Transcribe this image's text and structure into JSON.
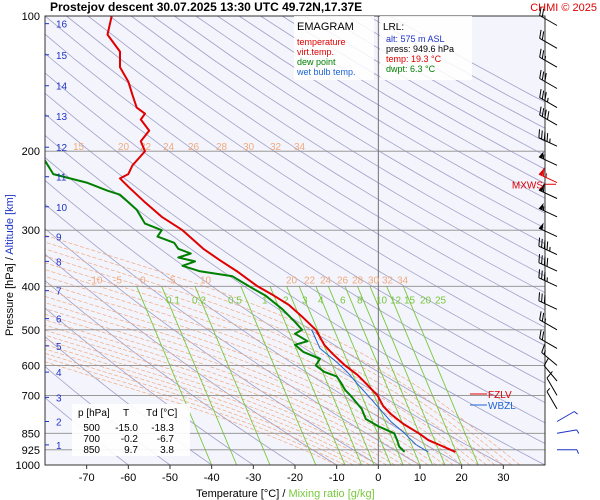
{
  "header": {
    "title": "Prostejov   descent  30.07.2025 13:30 UTC  49.72N,17.37E",
    "copyright": "CHMI © 2025"
  },
  "legend": {
    "title": "EMAGRAM",
    "items": [
      {
        "label": "temperature",
        "color": "#e00000"
      },
      {
        "label": "virt.temp.",
        "color": "#e00000"
      },
      {
        "label": "dew point",
        "color": "#008000"
      },
      {
        "label": "wet bulb temp.",
        "color": "#1e64d2"
      }
    ]
  },
  "lrl": {
    "title": "LRL:",
    "lines": [
      {
        "text": "alt: 575 m ASL",
        "color": "#1e32c8"
      },
      {
        "text": "press: 949.6 hPa",
        "color": "#000000"
      },
      {
        "text": "temp: 19.3 °C",
        "color": "#e00000"
      },
      {
        "text": "dwpt: 6.3 °C",
        "color": "#008000"
      }
    ]
  },
  "table": {
    "headers": [
      "p [hPa]",
      "T",
      "Td [°C]"
    ],
    "rows": [
      [
        "500",
        "-15.0",
        "-18.3"
      ],
      [
        "700",
        "-0.2",
        "-6.7"
      ],
      [
        "850",
        "9.7",
        "3.8"
      ]
    ]
  },
  "axes": {
    "x_label": "Temperature [°C]",
    "x_label_sep": " / ",
    "x_label2": "Mixing ratio [g/kg]",
    "y_label": "Pressure [hPa]",
    "y_label_sep": " / ",
    "y_label2": "Altitude [km]"
  },
  "markers": {
    "mxws": "MXWS",
    "fzlv": "FZLV",
    "wbzl": "WBZL"
  },
  "colors": {
    "temperature": "#e00000",
    "dewpoint": "#008000",
    "wetbulb": "#1e64d2",
    "altitude": "#1e32c8",
    "dry_adiabat": "#a0a0c8",
    "moist_adiabat": "#f0aa7d",
    "mixing_ratio": "#78c83c",
    "background": "#f4f4fd"
  },
  "chart_data": {
    "type": "line",
    "y_scale": "log",
    "xlim": [
      -80,
      40
    ],
    "ylim": [
      1000,
      100
    ],
    "x_ticks": [
      "-70",
      "-60",
      "-50",
      "-40",
      "-30",
      "-20",
      "-10",
      "0",
      "10",
      "20",
      "30"
    ],
    "p_ticks": [
      "100",
      "200",
      "300",
      "400",
      "500",
      "600",
      "700",
      "850",
      "925",
      "1000"
    ],
    "altitude_ticks": [
      {
        "km": "1",
        "p": 902
      },
      {
        "km": "2",
        "p": 800
      },
      {
        "km": "3",
        "p": 707
      },
      {
        "km": "4",
        "p": 621
      },
      {
        "km": "5",
        "p": 543
      },
      {
        "km": "6",
        "p": 472
      },
      {
        "km": "7",
        "p": 409
      },
      {
        "km": "8",
        "p": 352
      },
      {
        "km": "9",
        "p": 310
      },
      {
        "km": "10",
        "p": 266
      },
      {
        "km": "11",
        "p": 228
      },
      {
        "km": "12",
        "p": 196
      },
      {
        "km": "13",
        "p": 167
      },
      {
        "km": "14",
        "p": 143
      },
      {
        "km": "15",
        "p": 122
      },
      {
        "km": "16",
        "p": 104
      }
    ],
    "mixing_ratio_labels": {
      "upper": {
        "p": 200,
        "labels": [
          "15",
          "20",
          "22",
          "24",
          "26",
          "28",
          "30",
          "32",
          "34"
        ]
      },
      "lower": {
        "p": 400,
        "labels": [
          "-10",
          "-5",
          "0",
          "5",
          "10",
          "20",
          "22",
          "24",
          "26",
          "28",
          "30",
          "32",
          "34"
        ]
      },
      "mixing": {
        "p": 430,
        "labels": [
          "0.1",
          "0.2",
          "0.5",
          "1",
          "2",
          "3",
          "4",
          "6",
          "8",
          "10",
          "12",
          "15",
          "20",
          "25"
        ]
      }
    },
    "series": [
      {
        "name": "temperature",
        "color": "#e00000",
        "points": [
          [
            18.5,
            935
          ],
          [
            15,
            905
          ],
          [
            12,
            880
          ],
          [
            9.7,
            850
          ],
          [
            6,
            810
          ],
          [
            3,
            770
          ],
          [
            1.2,
            740
          ],
          [
            -0.2,
            700
          ],
          [
            -2.5,
            665
          ],
          [
            -5,
            630
          ],
          [
            -8,
            600
          ],
          [
            -11,
            565
          ],
          [
            -13,
            540
          ],
          [
            -15,
            500
          ],
          [
            -18,
            470
          ],
          [
            -21.5,
            440
          ],
          [
            -25,
            420
          ],
          [
            -29,
            400
          ],
          [
            -34,
            370
          ],
          [
            -38,
            350
          ],
          [
            -42,
            330
          ],
          [
            -47,
            300
          ],
          [
            -52,
            280
          ],
          [
            -56,
            260
          ],
          [
            -60,
            240
          ],
          [
            -62,
            230
          ],
          [
            -60,
            225
          ],
          [
            -59,
            215
          ],
          [
            -57,
            205
          ],
          [
            -56,
            200
          ],
          [
            -57,
            190
          ],
          [
            -55,
            180
          ],
          [
            -57,
            170
          ],
          [
            -56,
            165
          ],
          [
            -58,
            160
          ],
          [
            -59,
            150
          ],
          [
            -60,
            140
          ],
          [
            -62,
            130
          ],
          [
            -62,
            120
          ],
          [
            -65,
            110
          ],
          [
            -64,
            100
          ]
        ]
      },
      {
        "name": "dew point",
        "color": "#008000",
        "points": [
          [
            6.3,
            935
          ],
          [
            5,
            910
          ],
          [
            4.5,
            880
          ],
          [
            3.8,
            850
          ],
          [
            0,
            820
          ],
          [
            -3,
            790
          ],
          [
            -4,
            750
          ],
          [
            -6.7,
            700
          ],
          [
            -8,
            680
          ],
          [
            -9,
            655
          ],
          [
            -10,
            635
          ],
          [
            -13,
            620
          ],
          [
            -15,
            600
          ],
          [
            -14,
            580
          ],
          [
            -18,
            560
          ],
          [
            -20,
            540
          ],
          [
            -17,
            530
          ],
          [
            -20,
            510
          ],
          [
            -18.3,
            500
          ],
          [
            -20,
            480
          ],
          [
            -23,
            450
          ],
          [
            -27,
            420
          ],
          [
            -30,
            405
          ],
          [
            -33,
            390
          ],
          [
            -35,
            380
          ],
          [
            -43,
            370
          ],
          [
            -47,
            360
          ],
          [
            -44,
            352
          ],
          [
            -48,
            345
          ],
          [
            -45,
            338
          ],
          [
            -48,
            330
          ],
          [
            -49,
            320
          ],
          [
            -53,
            310
          ],
          [
            -52,
            300
          ],
          [
            -56,
            290
          ],
          [
            -58,
            270
          ],
          [
            -62,
            250
          ],
          [
            -65,
            245
          ],
          [
            -70,
            235
          ],
          [
            -78,
            225
          ],
          [
            -80,
            210
          ],
          [
            -82,
            195
          ]
        ]
      },
      {
        "name": "wet bulb temp.",
        "color": "#1e64d2",
        "points": [
          [
            12,
            935
          ],
          [
            9,
            900
          ],
          [
            6.3,
            850
          ],
          [
            3,
            800
          ],
          [
            -2.5,
            700
          ],
          [
            -5,
            660
          ],
          [
            -7.5,
            620
          ],
          [
            -10,
            590
          ],
          [
            -14,
            550
          ],
          [
            -16,
            500
          ]
        ]
      }
    ],
    "wind_barbs": [
      {
        "p": 925,
        "dir": 90,
        "kt": 5
      },
      {
        "p": 850,
        "dir": 80,
        "kt": 5
      },
      {
        "p": 800,
        "dir": 60,
        "kt": 5
      },
      {
        "p": 750,
        "dir": 330,
        "kt": 5
      },
      {
        "p": 700,
        "dir": 330,
        "kt": 10
      },
      {
        "p": 650,
        "dir": 320,
        "kt": 10
      },
      {
        "p": 600,
        "dir": 310,
        "kt": 15
      },
      {
        "p": 550,
        "dir": 300,
        "kt": 20
      },
      {
        "p": 500,
        "dir": 300,
        "kt": 25
      },
      {
        "p": 450,
        "dir": 295,
        "kt": 30
      },
      {
        "p": 400,
        "dir": 295,
        "kt": 35
      },
      {
        "p": 370,
        "dir": 295,
        "kt": 40
      },
      {
        "p": 340,
        "dir": 295,
        "kt": 45
      },
      {
        "p": 310,
        "dir": 295,
        "kt": 50
      },
      {
        "p": 280,
        "dir": 295,
        "kt": 55
      },
      {
        "p": 255,
        "dir": 295,
        "kt": 60
      },
      {
        "p": 235,
        "dir": 295,
        "kt": 65
      },
      {
        "p": 215,
        "dir": 295,
        "kt": 55
      },
      {
        "p": 195,
        "dir": 295,
        "kt": 45
      },
      {
        "p": 175,
        "dir": 300,
        "kt": 40
      },
      {
        "p": 160,
        "dir": 300,
        "kt": 35
      },
      {
        "p": 145,
        "dir": 300,
        "kt": 30
      },
      {
        "p": 130,
        "dir": 300,
        "kt": 25
      },
      {
        "p": 118,
        "dir": 300,
        "kt": 20
      },
      {
        "p": 105,
        "dir": 300,
        "kt": 20
      }
    ],
    "marker_levels": {
      "mxws": 237,
      "fzlv": 695,
      "wbzl": 735
    }
  }
}
